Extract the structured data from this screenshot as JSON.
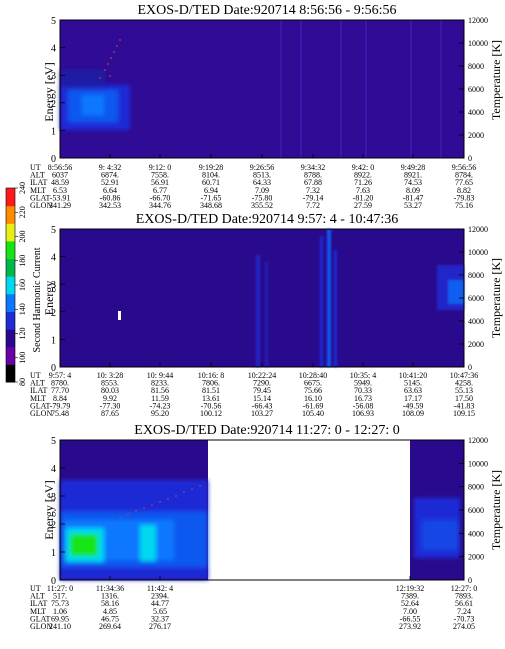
{
  "colorbar": {
    "label": "Second Harmonic Current",
    "ticks": [
      "80",
      "100",
      "120",
      "140",
      "160",
      "180",
      "200",
      "220",
      "240"
    ],
    "colors": [
      "#000000",
      "#6a00a8",
      "#2a0a8c",
      "#1f2bd6",
      "#0a78ff",
      "#00d8f0",
      "#00b84a",
      "#14e614",
      "#e6f014",
      "#ff8c00",
      "#ff1a1a"
    ]
  },
  "chart_data": [
    {
      "type": "heatmap",
      "title": "EXOS-D/TED   Date:920714   8:56:56 - 9:56:56",
      "ylabel": "Energy [eV]",
      "ylabel_right": "Temperature [K]",
      "ylim": [
        0,
        5
      ],
      "yticks": [
        "0",
        "1",
        "2",
        "3",
        "4",
        "5"
      ],
      "ylim_right": [
        0,
        12000
      ],
      "yticks_right": [
        "0",
        "2000",
        "4000",
        "6000",
        "8000",
        "10000",
        "12000"
      ],
      "row_labels": [
        "UT",
        "ALT",
        "ILAT",
        "MLT",
        "GLAT",
        "GLON"
      ],
      "columns": [
        [
          "8:56:56",
          "6037",
          "48.59",
          "6.53",
          "-53.91",
          "341.29"
        ],
        [
          "9: 4:32",
          "6874.",
          "52.91",
          "6.64",
          "-60.86",
          "342.53"
        ],
        [
          "9:12: 0",
          "7558.",
          "56.91",
          "6.77",
          "-66.70",
          "344.76"
        ],
        [
          "9:19:28",
          "8104.",
          "60.71",
          "6.94",
          "-71.65",
          "348.68"
        ],
        [
          "9:26:56",
          "8513.",
          "64.33",
          "7.09",
          "-75.80",
          "355.52"
        ],
        [
          "9:34:32",
          "8788.",
          "67.88",
          "7.32",
          "-79.14",
          "7.72"
        ],
        [
          "9:42: 0",
          "8922.",
          "71.26",
          "7.63",
          "-81.20",
          "27.59"
        ],
        [
          "9:49:28",
          "8921.",
          "74.53",
          "8.09",
          "-81.47",
          "53.27"
        ],
        [
          "9:56:56",
          "8784.",
          "77.65",
          "8.82",
          "-79.83",
          "75.16"
        ]
      ]
    },
    {
      "type": "heatmap",
      "title": "EXOS-D/TED   Date:920714   9:57: 4 - 10:47:36",
      "ylabel": "Energy",
      "ylabel_right": "Temperature [K]",
      "ylim": [
        0,
        5
      ],
      "yticks": [
        "0",
        "1",
        "2",
        "3",
        "4",
        "5"
      ],
      "ylim_right": [
        0,
        12000
      ],
      "yticks_right": [
        "0",
        "2000",
        "4000",
        "6000",
        "8000",
        "10000",
        "12000"
      ],
      "row_labels": [
        "UT",
        "ALT",
        "ILAT",
        "MLT",
        "GLAT",
        "GLON"
      ],
      "columns": [
        [
          "9:57: 4",
          "8780.",
          "77.70",
          "8.84",
          "-79.79",
          "75.48"
        ],
        [
          "10: 3:28",
          "8553.",
          "80.03",
          "9.92",
          "-77.30",
          "87.65"
        ],
        [
          "10: 9:44",
          "8233.",
          "81.56",
          "11.59",
          "-74.23",
          "95.20"
        ],
        [
          "10:16: 8",
          "7806.",
          "81.51",
          "13.61",
          "-70.56",
          "100.12"
        ],
        [
          "10:22:24",
          "7290.",
          "79.45",
          "15.14",
          "-66.43",
          "103.27"
        ],
        [
          "10:28:40",
          "6675.",
          "75.66",
          "16.10",
          "-61.69",
          "105.40"
        ],
        [
          "10:35: 4",
          "5949.",
          "70.33",
          "16.73",
          "-56.08",
          "106.93"
        ],
        [
          "10:41:20",
          "5145.",
          "63.63",
          "17.17",
          "-49.59",
          "108.09"
        ],
        [
          "10:47:36",
          "4258.",
          "55.13",
          "17.50",
          "-41.83",
          "109.15"
        ]
      ]
    },
    {
      "type": "heatmap",
      "title": "EXOS-D/TED   Date:920714   11:27: 0 - 12:27: 0",
      "ylabel": "Energy [eV]",
      "ylabel_right": "Temperature [K]",
      "ylim": [
        0,
        5
      ],
      "yticks": [
        "0",
        "1",
        "2",
        "3",
        "4",
        "5"
      ],
      "ylim_right": [
        0,
        12000
      ],
      "yticks_right": [
        "0",
        "2000",
        "4000",
        "6000",
        "8000",
        "10000",
        "12000"
      ],
      "row_labels": [
        "UT",
        "ALT",
        "ILAT",
        "MLT",
        "GLAT",
        "GLON"
      ],
      "columns": [
        [
          "11:27: 0",
          "517.",
          "75.73",
          "1.06",
          "69.95",
          "241.10"
        ],
        [
          "11:34:36",
          "1316.",
          "58.16",
          "4.85",
          "46.75",
          "269.64"
        ],
        [
          "11:42: 4",
          "2394.",
          "44.77",
          "5.65",
          "32.37",
          "276.17"
        ],
        [
          "12:19:32",
          "7389.",
          "52.64",
          "7.00",
          "-66.55",
          "273.92"
        ],
        [
          "12:27: 0",
          "7893.",
          "56.61",
          "7.24",
          "-70.73",
          "274.05"
        ]
      ]
    }
  ]
}
